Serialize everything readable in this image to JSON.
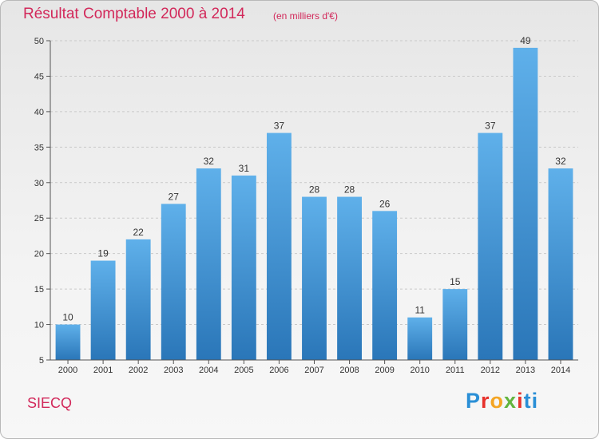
{
  "chart_data": {
    "type": "bar",
    "title": "Résultat Comptable 2000 à 2014",
    "subtitle": "(en milliers d'€)",
    "categories": [
      "2000",
      "2001",
      "2002",
      "2003",
      "2004",
      "2005",
      "2006",
      "2007",
      "2008",
      "2009",
      "2010",
      "2011",
      "2012",
      "2013",
      "2014"
    ],
    "values": [
      10,
      19,
      22,
      27,
      32,
      31,
      37,
      28,
      28,
      26,
      11,
      15,
      37,
      49,
      32
    ],
    "ylim": [
      5,
      50
    ],
    "yticks": [
      5,
      10,
      15,
      20,
      25,
      30,
      35,
      40,
      45,
      50
    ],
    "xlabel": "",
    "ylabel": "",
    "grid": true,
    "bar_color": "#4a9de0"
  },
  "footer": {
    "commune": "SIECQ",
    "logo_letters": [
      "P",
      "r",
      "o",
      "x",
      "i",
      "ti"
    ]
  },
  "colors": {
    "title": "#d2285a",
    "bar_top": "#5fb0ea",
    "bar_bottom": "#2a76b8"
  }
}
